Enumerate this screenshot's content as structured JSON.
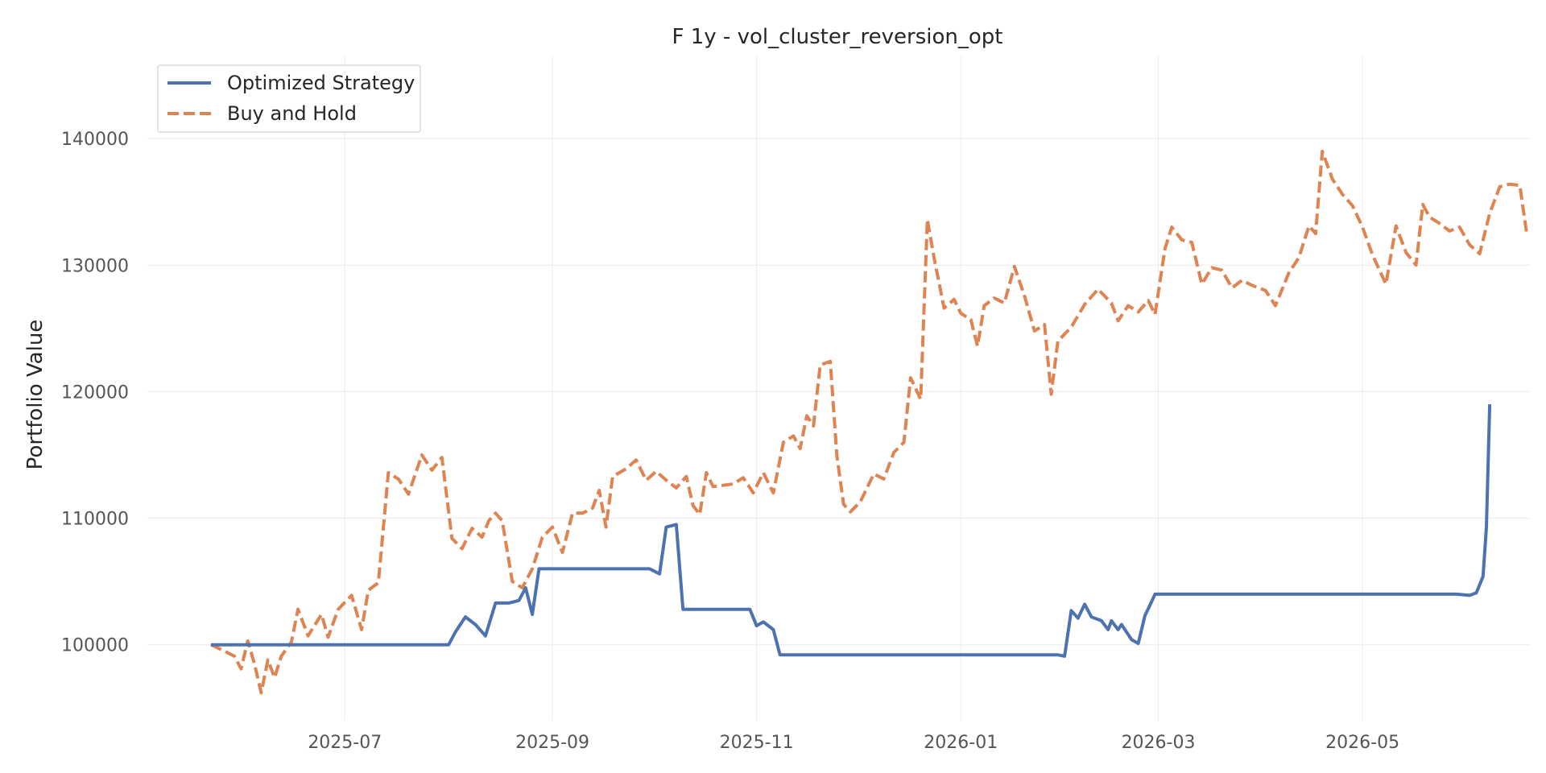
{
  "chart_data": {
    "type": "line",
    "title": "F 1y - vol_cluster_reversion_opt",
    "xlabel": "",
    "ylabel": "Portfolio Value",
    "xlim": [
      "2025-05-03",
      "2026-06-20"
    ],
    "ylim": [
      94000,
      146500
    ],
    "x_ticks": [
      "2025-07",
      "2025-09",
      "2025-11",
      "2026-01",
      "2026-03",
      "2026-05"
    ],
    "y_ticks": [
      100000,
      110000,
      120000,
      130000,
      140000
    ],
    "grid": true,
    "legend": "top-left",
    "series": [
      {
        "name": "Optimized Strategy",
        "color": "#4c72b0",
        "style": "solid",
        "points": [
          [
            "2025-05-22",
            100000
          ],
          [
            "2025-08-01",
            100000
          ],
          [
            "2025-08-03",
            101000
          ],
          [
            "2025-08-06",
            102200
          ],
          [
            "2025-08-09",
            101600
          ],
          [
            "2025-08-12",
            100700
          ],
          [
            "2025-08-15",
            103300
          ],
          [
            "2025-08-19",
            103300
          ],
          [
            "2025-08-22",
            103500
          ],
          [
            "2025-08-24",
            104500
          ],
          [
            "2025-08-26",
            102400
          ],
          [
            "2025-08-28",
            106000
          ],
          [
            "2025-09-30",
            106000
          ],
          [
            "2025-10-03",
            105600
          ],
          [
            "2025-10-05",
            109300
          ],
          [
            "2025-10-08",
            109500
          ],
          [
            "2025-10-10",
            102800
          ],
          [
            "2025-10-30",
            102800
          ],
          [
            "2025-11-01",
            101500
          ],
          [
            "2025-11-03",
            101800
          ],
          [
            "2025-11-06",
            101200
          ],
          [
            "2025-11-08",
            99200
          ],
          [
            "2026-01-30",
            99200
          ],
          [
            "2026-02-01",
            99100
          ],
          [
            "2026-02-03",
            102700
          ],
          [
            "2026-02-05",
            102100
          ],
          [
            "2026-02-07",
            103200
          ],
          [
            "2026-02-09",
            102200
          ],
          [
            "2026-02-12",
            101900
          ],
          [
            "2026-02-14",
            101200
          ],
          [
            "2026-02-15",
            101900
          ],
          [
            "2026-02-17",
            101200
          ],
          [
            "2026-02-18",
            101600
          ],
          [
            "2026-02-21",
            100400
          ],
          [
            "2026-02-23",
            100100
          ],
          [
            "2026-02-25",
            102300
          ],
          [
            "2026-02-27",
            103400
          ],
          [
            "2026-02-28",
            104000
          ],
          [
            "2026-05-29",
            104000
          ],
          [
            "2026-06-02",
            103900
          ],
          [
            "2026-06-04",
            104100
          ],
          [
            "2026-06-06",
            105400
          ],
          [
            "2026-06-07",
            109300
          ],
          [
            "2026-06-08",
            119000
          ]
        ]
      },
      {
        "name": "Buy and Hold",
        "color": "#dd8452",
        "style": "dashed",
        "points": [
          [
            "2025-05-22",
            100000
          ],
          [
            "2025-05-26",
            99500
          ],
          [
            "2025-05-29",
            99100
          ],
          [
            "2025-05-31",
            98100
          ],
          [
            "2025-06-02",
            100300
          ],
          [
            "2025-06-04",
            98500
          ],
          [
            "2025-06-06",
            96200
          ],
          [
            "2025-06-08",
            98800
          ],
          [
            "2025-06-10",
            97400
          ],
          [
            "2025-06-12",
            99100
          ],
          [
            "2025-06-15",
            100200
          ],
          [
            "2025-06-17",
            102800
          ],
          [
            "2025-06-20",
            100700
          ],
          [
            "2025-06-24",
            102400
          ],
          [
            "2025-06-26",
            100600
          ],
          [
            "2025-06-29",
            102800
          ],
          [
            "2025-07-03",
            103900
          ],
          [
            "2025-07-06",
            101200
          ],
          [
            "2025-07-08",
            104300
          ],
          [
            "2025-07-11",
            104900
          ],
          [
            "2025-07-14",
            113600
          ],
          [
            "2025-07-17",
            113100
          ],
          [
            "2025-07-20",
            111900
          ],
          [
            "2025-07-24",
            115000
          ],
          [
            "2025-07-27",
            113800
          ],
          [
            "2025-07-30",
            114800
          ],
          [
            "2025-08-02",
            108400
          ],
          [
            "2025-08-05",
            107600
          ],
          [
            "2025-08-08",
            109200
          ],
          [
            "2025-08-11",
            108500
          ],
          [
            "2025-08-13",
            109800
          ],
          [
            "2025-08-15",
            110400
          ],
          [
            "2025-08-17",
            109800
          ],
          [
            "2025-08-20",
            105000
          ],
          [
            "2025-08-23",
            104500
          ],
          [
            "2025-08-26",
            106000
          ],
          [
            "2025-08-29",
            108500
          ],
          [
            "2025-09-01",
            109300
          ],
          [
            "2025-09-04",
            107300
          ],
          [
            "2025-09-07",
            110400
          ],
          [
            "2025-09-10",
            110400
          ],
          [
            "2025-09-13",
            110800
          ],
          [
            "2025-09-15",
            112200
          ],
          [
            "2025-09-17",
            109300
          ],
          [
            "2025-09-19",
            113300
          ],
          [
            "2025-09-23",
            113900
          ],
          [
            "2025-09-26",
            114600
          ],
          [
            "2025-09-29",
            113000
          ],
          [
            "2025-10-02",
            113700
          ],
          [
            "2025-10-05",
            113000
          ],
          [
            "2025-10-08",
            112400
          ],
          [
            "2025-10-11",
            113300
          ],
          [
            "2025-10-13",
            111000
          ],
          [
            "2025-10-15",
            110300
          ],
          [
            "2025-10-17",
            113600
          ],
          [
            "2025-10-19",
            112500
          ],
          [
            "2025-10-22",
            112600
          ],
          [
            "2025-10-25",
            112700
          ],
          [
            "2025-10-28",
            113200
          ],
          [
            "2025-10-31",
            112000
          ],
          [
            "2025-11-03",
            113600
          ],
          [
            "2025-11-06",
            112000
          ],
          [
            "2025-11-09",
            116000
          ],
          [
            "2025-11-12",
            116500
          ],
          [
            "2025-11-14",
            115500
          ],
          [
            "2025-11-16",
            118100
          ],
          [
            "2025-11-18",
            117300
          ],
          [
            "2025-11-20",
            122100
          ],
          [
            "2025-11-23",
            122400
          ],
          [
            "2025-11-25",
            114900
          ],
          [
            "2025-11-27",
            111100
          ],
          [
            "2025-11-29",
            110500
          ],
          [
            "2025-12-02",
            111300
          ],
          [
            "2025-12-06",
            113500
          ],
          [
            "2025-12-09",
            113100
          ],
          [
            "2025-12-12",
            115200
          ],
          [
            "2025-12-15",
            116000
          ],
          [
            "2025-12-17",
            121100
          ],
          [
            "2025-12-20",
            119400
          ],
          [
            "2025-12-22",
            133600
          ],
          [
            "2025-12-24",
            130600
          ],
          [
            "2025-12-27",
            126600
          ],
          [
            "2025-12-30",
            127300
          ],
          [
            "2026-01-01",
            126200
          ],
          [
            "2026-01-04",
            125700
          ],
          [
            "2026-01-06",
            123600
          ],
          [
            "2026-01-08",
            126800
          ],
          [
            "2026-01-11",
            127400
          ],
          [
            "2026-01-14",
            127000
          ],
          [
            "2026-01-17",
            129900
          ],
          [
            "2026-01-20",
            127600
          ],
          [
            "2026-01-23",
            124800
          ],
          [
            "2026-01-26",
            125300
          ],
          [
            "2026-01-28",
            119800
          ],
          [
            "2026-01-30",
            124000
          ],
          [
            "2026-02-03",
            125100
          ],
          [
            "2026-02-07",
            126900
          ],
          [
            "2026-02-11",
            128100
          ],
          [
            "2026-02-15",
            127000
          ],
          [
            "2026-02-17",
            125600
          ],
          [
            "2026-02-20",
            126800
          ],
          [
            "2026-02-23",
            126300
          ],
          [
            "2026-02-26",
            127200
          ],
          [
            "2026-02-28",
            126100
          ],
          [
            "2026-03-03",
            131300
          ],
          [
            "2026-03-05",
            133000
          ],
          [
            "2026-03-08",
            132000
          ],
          [
            "2026-03-11",
            131800
          ],
          [
            "2026-03-14",
            128500
          ],
          [
            "2026-03-17",
            129800
          ],
          [
            "2026-03-20",
            129600
          ],
          [
            "2026-03-23",
            128200
          ],
          [
            "2026-03-26",
            128800
          ],
          [
            "2026-03-29",
            128400
          ],
          [
            "2026-04-02",
            128000
          ],
          [
            "2026-04-05",
            126800
          ],
          [
            "2026-04-09",
            129400
          ],
          [
            "2026-04-12",
            130600
          ],
          [
            "2026-04-15",
            133100
          ],
          [
            "2026-04-17",
            132500
          ],
          [
            "2026-04-19",
            139000
          ],
          [
            "2026-04-22",
            136800
          ],
          [
            "2026-04-25",
            135600
          ],
          [
            "2026-04-28",
            134700
          ],
          [
            "2026-05-01",
            133000
          ],
          [
            "2026-05-04",
            130800
          ],
          [
            "2026-05-08",
            128500
          ],
          [
            "2026-05-11",
            133100
          ],
          [
            "2026-05-14",
            131000
          ],
          [
            "2026-05-17",
            130000
          ],
          [
            "2026-05-19",
            134800
          ],
          [
            "2026-05-21",
            133800
          ],
          [
            "2026-05-24",
            133300
          ],
          [
            "2026-05-27",
            132700
          ],
          [
            "2026-05-30",
            133000
          ],
          [
            "2026-06-02",
            131600
          ],
          [
            "2026-06-05",
            130900
          ],
          [
            "2026-06-08",
            134100
          ],
          [
            "2026-06-11",
            136200
          ],
          [
            "2026-06-14",
            136400
          ],
          [
            "2026-06-17",
            136300
          ],
          [
            "2026-06-19",
            132600
          ]
        ]
      }
    ]
  }
}
